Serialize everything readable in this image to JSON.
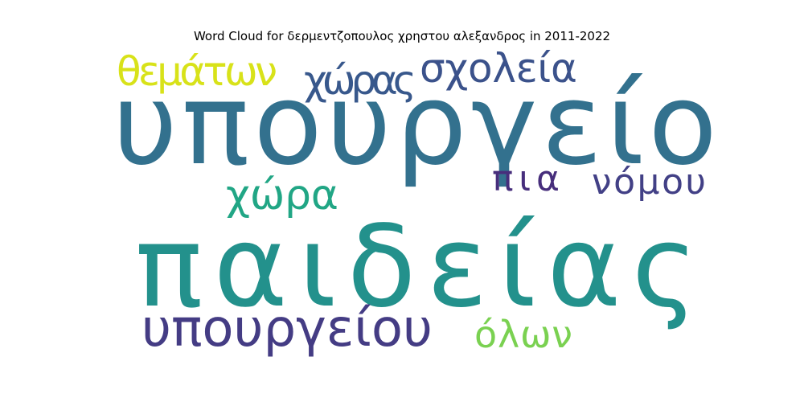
{
  "chart_data": {
    "type": "wordcloud",
    "title": "Word Cloud for δερμεντζοπουλος χρηστου αλεξανδρος in 2011-2022",
    "words": [
      {
        "text": "υπουργείο",
        "weight": 1.0,
        "color": "#33718e"
      },
      {
        "text": "παιδείας",
        "weight": 0.92,
        "color": "#23918c"
      },
      {
        "text": "υπουργείου",
        "weight": 0.44,
        "color": "#443c84"
      },
      {
        "text": "θεμάτων",
        "weight": 0.32,
        "color": "#d8e219"
      },
      {
        "text": "χώρας",
        "weight": 0.3,
        "color": "#38588c"
      },
      {
        "text": "σχολεία",
        "weight": 0.3,
        "color": "#3b528b"
      },
      {
        "text": "χώρα",
        "weight": 0.33,
        "color": "#21a685"
      },
      {
        "text": "πια",
        "weight": 0.28,
        "color": "#472e7c"
      },
      {
        "text": "νόμου",
        "weight": 0.28,
        "color": "#424086"
      },
      {
        "text": "όλων",
        "weight": 0.3,
        "color": "#7ad151"
      }
    ]
  }
}
